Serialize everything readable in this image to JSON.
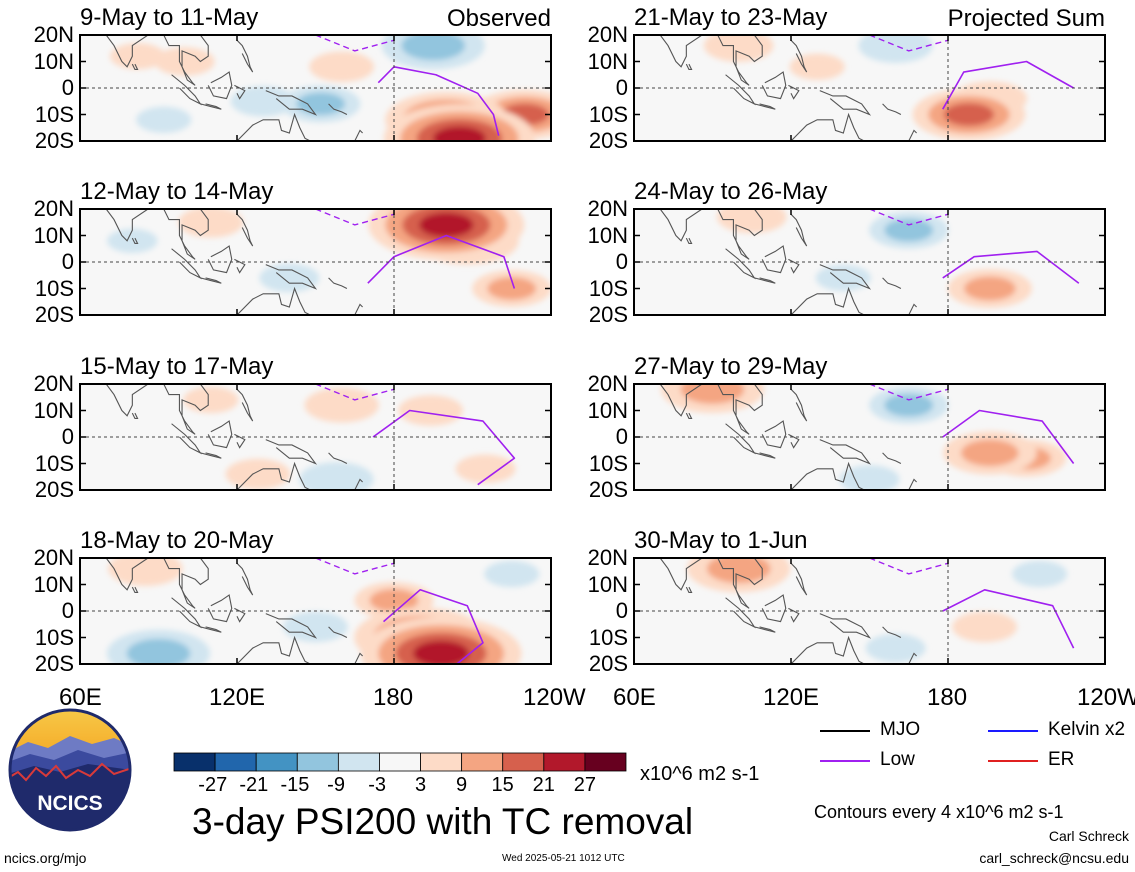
{
  "figure": {
    "title": "3-day PSI200 with TC removal",
    "units": "x10^6 m2 s-1",
    "contour_note": "Contours every 4 x10^6 m2 s-1",
    "author": "Carl Schreck",
    "email": "carl_schreck@ncsu.edu",
    "website": "ncics.org/mjo",
    "timestamp": "Wed 2025-05-21 1012 UTC",
    "logo_text": "NCICS",
    "column_tags": {
      "left": "Observed",
      "right": "Projected Sum"
    },
    "legend": [
      {
        "label": "MJO",
        "color": "#000000"
      },
      {
        "label": "Kelvin x2",
        "color": "#1a1aff"
      },
      {
        "label": "Low",
        "color": "#a020f0"
      },
      {
        "label": "ER",
        "color": "#e02020"
      }
    ]
  },
  "chart_data": {
    "type": "heatmap",
    "variable": "PSI200",
    "lat_ticks": [
      "20N",
      "10N",
      "0",
      "10S",
      "20S"
    ],
    "lon_ticks": [
      "60E",
      "120E",
      "180",
      "120W"
    ],
    "colorbar": {
      "labels": [
        "-27",
        "-21",
        "-15",
        "-9",
        "-3",
        "3",
        "9",
        "15",
        "21",
        "27"
      ],
      "colors": [
        "#08306b",
        "#2166ac",
        "#4393c3",
        "#92c5de",
        "#d1e5f0",
        "#f7f7f7",
        "#fddbc7",
        "#f4a582",
        "#d6604d",
        "#b2182b",
        "#67001f"
      ]
    },
    "panels": [
      {
        "title": "9-May to 11-May",
        "column": "observed",
        "anomalies": [
          {
            "lon": 200,
            "lat": -12,
            "value": 18
          },
          {
            "lon": 230,
            "lat": -10,
            "value": 15
          },
          {
            "lon": 205,
            "lat": -19,
            "value": 24
          },
          {
            "lon": 195,
            "lat": 16,
            "value": -14
          },
          {
            "lon": 160,
            "lat": 8,
            "value": 6
          },
          {
            "lon": 130,
            "lat": -5,
            "value": -6
          },
          {
            "lon": 152,
            "lat": -6,
            "value": -9
          },
          {
            "lon": 100,
            "lat": 10,
            "value": 5
          },
          {
            "lon": 82,
            "lat": 12,
            "value": 4
          },
          {
            "lon": 92,
            "lat": -12,
            "value": -4
          }
        ],
        "low": [
          {
            "lon": 174,
            "lat": 2
          },
          {
            "lon": 180,
            "lat": 8
          },
          {
            "lon": 196,
            "lat": 5
          },
          {
            "lon": 212,
            "lat": -2
          },
          {
            "lon": 218,
            "lat": -10
          },
          {
            "lon": 220,
            "lat": -18
          }
        ]
      },
      {
        "title": "12-May to 14-May",
        "column": "observed",
        "anomalies": [
          {
            "lon": 200,
            "lat": 14,
            "value": 25
          },
          {
            "lon": 208,
            "lat": 8,
            "value": 14
          },
          {
            "lon": 225,
            "lat": -10,
            "value": 9
          },
          {
            "lon": 110,
            "lat": 15,
            "value": 6
          },
          {
            "lon": 140,
            "lat": -6,
            "value": -5
          },
          {
            "lon": 80,
            "lat": 8,
            "value": -3
          }
        ],
        "low": [
          {
            "lon": 170,
            "lat": -8
          },
          {
            "lon": 180,
            "lat": 2
          },
          {
            "lon": 200,
            "lat": 10
          },
          {
            "lon": 222,
            "lat": 2
          },
          {
            "lon": 226,
            "lat": -10
          }
        ]
      },
      {
        "title": "15-May to 17-May",
        "column": "observed",
        "anomalies": [
          {
            "lon": 160,
            "lat": 12,
            "value": 8
          },
          {
            "lon": 194,
            "lat": 10,
            "value": 6
          },
          {
            "lon": 158,
            "lat": -16,
            "value": -8
          },
          {
            "lon": 128,
            "lat": -14,
            "value": 6
          },
          {
            "lon": 110,
            "lat": 14,
            "value": 4
          },
          {
            "lon": 215,
            "lat": -12,
            "value": 5
          }
        ],
        "low": [
          {
            "lon": 172,
            "lat": 0
          },
          {
            "lon": 186,
            "lat": 10
          },
          {
            "lon": 214,
            "lat": 6
          },
          {
            "lon": 226,
            "lat": -8
          },
          {
            "lon": 212,
            "lat": -18
          }
        ]
      },
      {
        "title": "18-May to 20-May",
        "column": "observed",
        "anomalies": [
          {
            "lon": 190,
            "lat": -10,
            "value": 20
          },
          {
            "lon": 198,
            "lat": -16,
            "value": 26
          },
          {
            "lon": 180,
            "lat": 4,
            "value": 9
          },
          {
            "lon": 90,
            "lat": -16,
            "value": -14
          },
          {
            "lon": 85,
            "lat": 16,
            "value": 8
          },
          {
            "lon": 150,
            "lat": -6,
            "value": -6
          },
          {
            "lon": 225,
            "lat": 14,
            "value": -4
          }
        ],
        "low": [
          {
            "lon": 176,
            "lat": -4
          },
          {
            "lon": 190,
            "lat": 8
          },
          {
            "lon": 208,
            "lat": 2
          },
          {
            "lon": 214,
            "lat": -12
          },
          {
            "lon": 204,
            "lat": -20
          }
        ]
      },
      {
        "title": "21-May to 23-May",
        "column": "projected",
        "anomalies": [
          {
            "lon": 188,
            "lat": -10,
            "value": 16
          },
          {
            "lon": 196,
            "lat": -4,
            "value": 8
          },
          {
            "lon": 160,
            "lat": 16,
            "value": -8
          },
          {
            "lon": 100,
            "lat": 16,
            "value": 7
          },
          {
            "lon": 130,
            "lat": 8,
            "value": 4
          }
        ],
        "low": [
          {
            "lon": 178,
            "lat": -8
          },
          {
            "lon": 186,
            "lat": 6
          },
          {
            "lon": 210,
            "lat": 10
          },
          {
            "lon": 228,
            "lat": 0
          }
        ]
      },
      {
        "title": "24-May to 26-May",
        "column": "projected",
        "anomalies": [
          {
            "lon": 196,
            "lat": -10,
            "value": 10
          },
          {
            "lon": 165,
            "lat": 12,
            "value": -9
          },
          {
            "lon": 105,
            "lat": 17,
            "value": 7
          },
          {
            "lon": 140,
            "lat": -6,
            "value": -4
          }
        ],
        "low": [
          {
            "lon": 178,
            "lat": -6
          },
          {
            "lon": 190,
            "lat": 2
          },
          {
            "lon": 214,
            "lat": 4
          },
          {
            "lon": 230,
            "lat": -8
          }
        ]
      },
      {
        "title": "27-May to 29-May",
        "column": "projected",
        "anomalies": [
          {
            "lon": 196,
            "lat": -6,
            "value": 12
          },
          {
            "lon": 210,
            "lat": -8,
            "value": 9
          },
          {
            "lon": 90,
            "lat": 18,
            "value": 14
          },
          {
            "lon": 165,
            "lat": 12,
            "value": -9
          },
          {
            "lon": 150,
            "lat": -16,
            "value": -5
          }
        ],
        "low": [
          {
            "lon": 178,
            "lat": 0
          },
          {
            "lon": 192,
            "lat": 10
          },
          {
            "lon": 216,
            "lat": 6
          },
          {
            "lon": 228,
            "lat": -10
          }
        ]
      },
      {
        "title": "30-May to 1-Jun",
        "column": "projected",
        "anomalies": [
          {
            "lon": 100,
            "lat": 16,
            "value": 14
          },
          {
            "lon": 194,
            "lat": -6,
            "value": 6
          },
          {
            "lon": 160,
            "lat": -14,
            "value": -5
          },
          {
            "lon": 215,
            "lat": 14,
            "value": -4
          }
        ],
        "low": [
          {
            "lon": 178,
            "lat": 0
          },
          {
            "lon": 194,
            "lat": 8
          },
          {
            "lon": 220,
            "lat": 2
          },
          {
            "lon": 228,
            "lat": -14
          }
        ]
      }
    ]
  }
}
